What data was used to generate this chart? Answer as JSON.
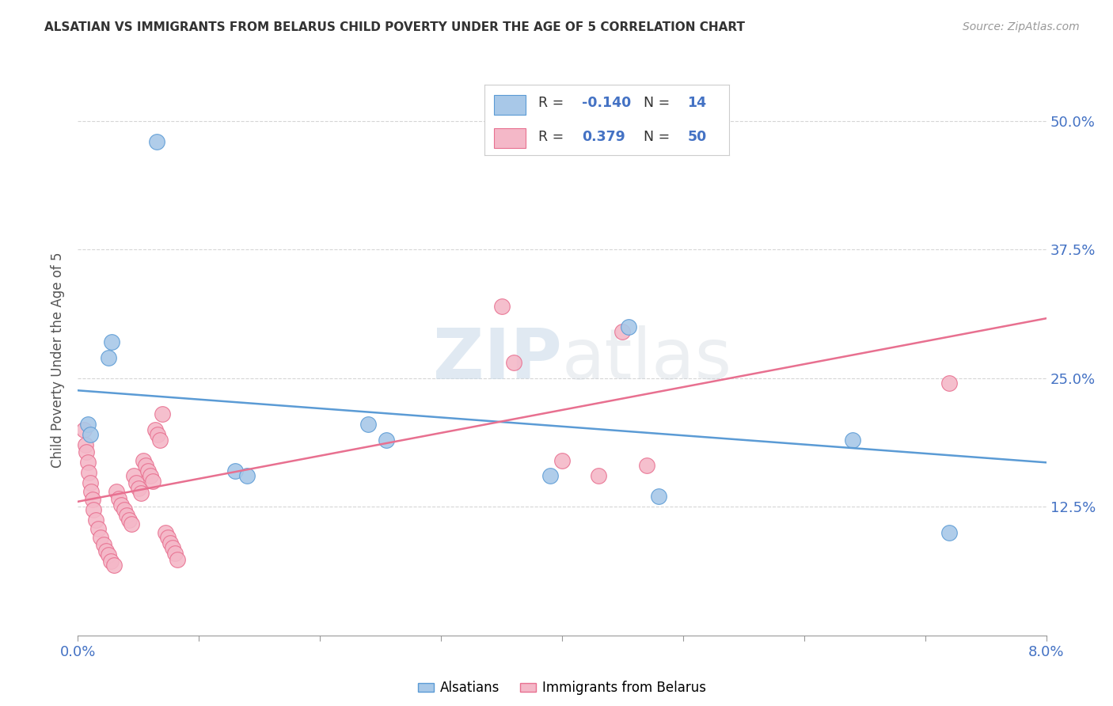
{
  "title": "ALSATIAN VS IMMIGRANTS FROM BELARUS CHILD POVERTY UNDER THE AGE OF 5 CORRELATION CHART",
  "source": "Source: ZipAtlas.com",
  "ylabel": "Child Poverty Under the Age of 5",
  "ytick_labels": [
    "12.5%",
    "25.0%",
    "37.5%",
    "50.0%"
  ],
  "ytick_values": [
    0.125,
    0.25,
    0.375,
    0.5
  ],
  "xtick_values": [
    0.0,
    0.01,
    0.02,
    0.03,
    0.04,
    0.05,
    0.06,
    0.07,
    0.08
  ],
  "xmin": 0.0,
  "xmax": 0.08,
  "ymin": 0.0,
  "ymax": 0.535,
  "legend_label1": "Alsatians",
  "legend_label2": "Immigrants from Belarus",
  "R1": "-0.140",
  "N1": "14",
  "R2": "0.379",
  "N2": "50",
  "color_blue": "#a8c8e8",
  "color_pink": "#f4b8c8",
  "edge_blue": "#5b9bd5",
  "edge_pink": "#e87090",
  "line_blue": "#5b9bd5",
  "line_pink": "#e87090",
  "text_blue": "#4472c4",
  "watermark_color": "#c8d8e8",
  "blue_points": [
    [
      0.0008,
      0.205
    ],
    [
      0.001,
      0.195
    ],
    [
      0.0025,
      0.27
    ],
    [
      0.0028,
      0.285
    ],
    [
      0.0065,
      0.48
    ],
    [
      0.013,
      0.16
    ],
    [
      0.014,
      0.155
    ],
    [
      0.024,
      0.205
    ],
    [
      0.0255,
      0.19
    ],
    [
      0.039,
      0.155
    ],
    [
      0.0455,
      0.3
    ],
    [
      0.048,
      0.135
    ],
    [
      0.064,
      0.19
    ],
    [
      0.072,
      0.1
    ]
  ],
  "pink_points": [
    [
      0.0005,
      0.2
    ],
    [
      0.0006,
      0.185
    ],
    [
      0.0007,
      0.178
    ],
    [
      0.0008,
      0.168
    ],
    [
      0.0009,
      0.158
    ],
    [
      0.001,
      0.148
    ],
    [
      0.0011,
      0.14
    ],
    [
      0.0012,
      0.132
    ],
    [
      0.0013,
      0.122
    ],
    [
      0.0015,
      0.112
    ],
    [
      0.0017,
      0.104
    ],
    [
      0.0019,
      0.095
    ],
    [
      0.0021,
      0.088
    ],
    [
      0.0023,
      0.082
    ],
    [
      0.0025,
      0.078
    ],
    [
      0.0027,
      0.072
    ],
    [
      0.003,
      0.068
    ],
    [
      0.0032,
      0.14
    ],
    [
      0.0034,
      0.133
    ],
    [
      0.0036,
      0.127
    ],
    [
      0.0038,
      0.122
    ],
    [
      0.004,
      0.117
    ],
    [
      0.0042,
      0.112
    ],
    [
      0.0044,
      0.108
    ],
    [
      0.0046,
      0.155
    ],
    [
      0.0048,
      0.148
    ],
    [
      0.005,
      0.143
    ],
    [
      0.0052,
      0.138
    ],
    [
      0.0054,
      0.17
    ],
    [
      0.0056,
      0.165
    ],
    [
      0.0058,
      0.16
    ],
    [
      0.006,
      0.155
    ],
    [
      0.0062,
      0.15
    ],
    [
      0.0064,
      0.2
    ],
    [
      0.0066,
      0.195
    ],
    [
      0.0068,
      0.19
    ],
    [
      0.007,
      0.215
    ],
    [
      0.0072,
      0.1
    ],
    [
      0.0074,
      0.095
    ],
    [
      0.0076,
      0.09
    ],
    [
      0.0078,
      0.085
    ],
    [
      0.008,
      0.08
    ],
    [
      0.0082,
      0.074
    ],
    [
      0.035,
      0.32
    ],
    [
      0.036,
      0.265
    ],
    [
      0.04,
      0.17
    ],
    [
      0.043,
      0.155
    ],
    [
      0.045,
      0.295
    ],
    [
      0.047,
      0.165
    ],
    [
      0.072,
      0.245
    ]
  ],
  "blue_trend_x": [
    0.0,
    0.08
  ],
  "blue_trend_y": [
    0.238,
    0.168
  ],
  "pink_trend_x": [
    0.0,
    0.08
  ],
  "pink_trend_y": [
    0.13,
    0.308
  ]
}
